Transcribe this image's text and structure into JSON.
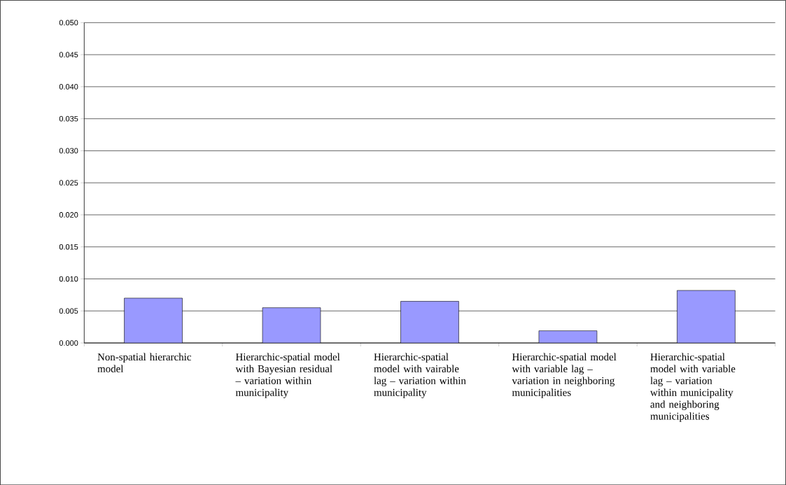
{
  "chart_data": {
    "type": "bar",
    "categories": [
      "Non-spatial hierarchic model",
      "Hierarchic-spatial model with Bayesian residual – variation within municipality",
      "Hierarchic-spatial model with vairable lag – variation within municipality",
      "Hierarchic-spatial model with variable lag – variation in neighboring municipalities",
      "Hierarchic-spatial model with variable lag – variation within municipality and neighboring municipalities"
    ],
    "values": [
      0.007,
      0.0055,
      0.0065,
      0.0019,
      0.0082
    ],
    "color": "#9999ff",
    "ylim": [
      0,
      0.05
    ],
    "yticks": [
      {
        "value": 0,
        "label": "0.000"
      },
      {
        "value": 0.005,
        "label": "0.005"
      },
      {
        "value": 0.01,
        "label": "0.010"
      },
      {
        "value": 0.015,
        "label": "0.015"
      },
      {
        "value": 0.02,
        "label": "0.020"
      },
      {
        "value": 0.025,
        "label": "0.025"
      },
      {
        "value": 0.03,
        "label": "0.030"
      },
      {
        "value": 0.035,
        "label": "0.035"
      },
      {
        "value": 0.04,
        "label": "0.040"
      },
      {
        "value": 0.045,
        "label": "0.045"
      },
      {
        "value": 0.05,
        "label": "0.050"
      }
    ],
    "grid": "y"
  }
}
